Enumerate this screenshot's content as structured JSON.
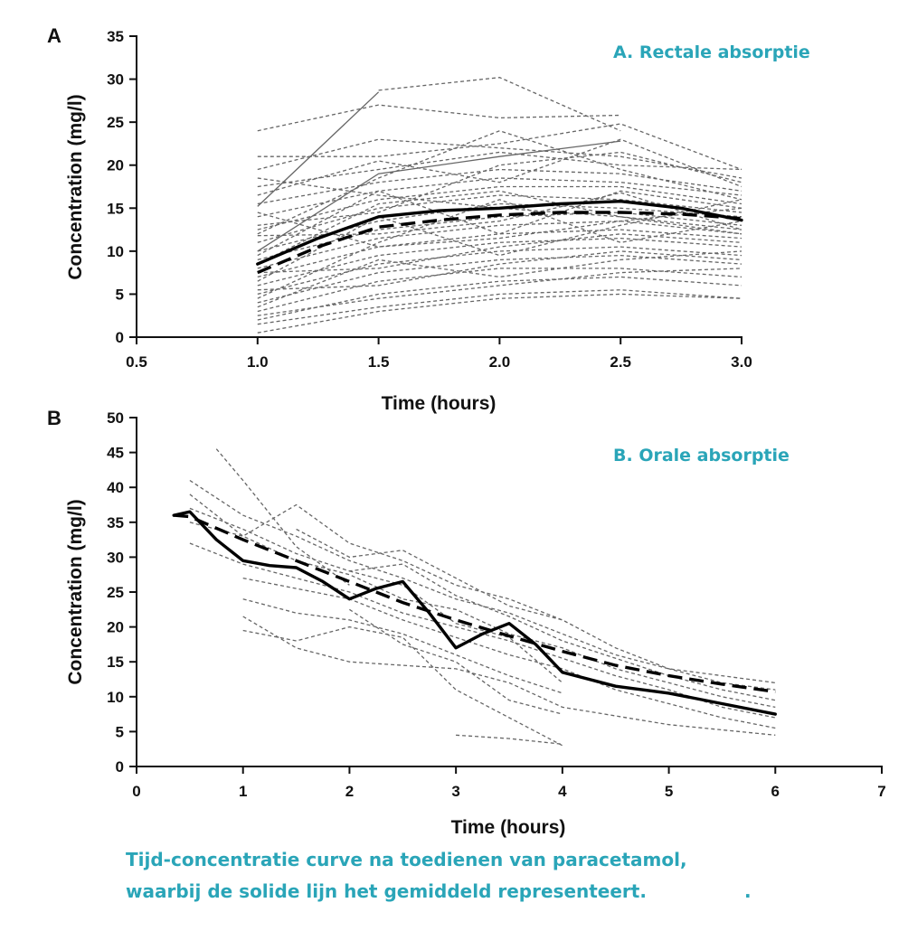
{
  "caption": {
    "line1": "Tijd-concentratie curve na toedienen van paracetamol,",
    "line2": "waarbij de solide lijn het gemiddeld representeert.",
    "trailing_dot": "."
  },
  "colors": {
    "accent": "#2aa5b8",
    "axis": "#111111",
    "individual": "#666666"
  },
  "chart_data": [
    {
      "type": "line",
      "panel_letter": "A",
      "title": "A. Rectale absorptie",
      "xlabel": "Time (hours)",
      "ylabel": "Concentration (mg/l)",
      "xlim": [
        0.5,
        3.0
      ],
      "ylim": [
        0,
        35
      ],
      "xticks": [
        0.5,
        1.0,
        1.5,
        2.0,
        2.5,
        3.0
      ],
      "xtick_labels": [
        "0.5",
        "1.0",
        "1.5",
        "2.0",
        "2.5",
        "3.0"
      ],
      "yticks": [
        0,
        5,
        10,
        15,
        20,
        25,
        30,
        35
      ],
      "ytick_labels": [
        "0",
        "5",
        "10",
        "15",
        "20",
        "25",
        "30",
        "35"
      ],
      "series": [
        {
          "style": "mean-solid",
          "x": [
            1.0,
            1.25,
            1.5,
            1.75,
            2.0,
            2.25,
            2.5,
            2.75,
            3.0
          ],
          "y": [
            8.5,
            11.5,
            14.0,
            14.7,
            15.0,
            15.5,
            15.8,
            15.0,
            13.6
          ]
        },
        {
          "style": "mean-dashed",
          "x": [
            1.0,
            1.25,
            1.5,
            1.75,
            2.0,
            2.25,
            2.5,
            2.75,
            3.0
          ],
          "y": [
            7.5,
            10.5,
            12.8,
            13.6,
            14.2,
            14.5,
            14.5,
            14.3,
            13.8
          ]
        },
        {
          "style": "individual-solid",
          "x": [
            1.0,
            1.5
          ],
          "y": [
            15.2,
            28.5
          ]
        },
        {
          "style": "individual-solid",
          "x": [
            1.0,
            1.5,
            2.0,
            2.5
          ],
          "y": [
            10.0,
            19.0,
            21.0,
            22.8
          ]
        },
        {
          "style": "individual",
          "x": [
            1.5,
            2.0,
            2.5
          ],
          "y": [
            28.7,
            30.2,
            24.0
          ]
        },
        {
          "style": "individual",
          "x": [
            1.0,
            1.5,
            2.0,
            2.5
          ],
          "y": [
            24.0,
            27.0,
            25.5,
            25.8
          ]
        },
        {
          "style": "individual",
          "x": [
            1.0,
            1.5,
            2.0,
            2.5,
            3.0
          ],
          "y": [
            21.0,
            21.0,
            22.5,
            24.8,
            19.5
          ]
        },
        {
          "style": "individual",
          "x": [
            1.0,
            1.5,
            2.0,
            2.5,
            3.0
          ],
          "y": [
            19.5,
            23.0,
            22.0,
            21.0,
            18.5
          ]
        },
        {
          "style": "individual",
          "x": [
            1.0,
            1.5,
            2.0,
            2.5,
            3.0
          ],
          "y": [
            17.5,
            19.5,
            21.5,
            20.0,
            19.5
          ]
        },
        {
          "style": "individual",
          "x": [
            1.0,
            1.5,
            2.0,
            2.5,
            3.0
          ],
          "y": [
            15.5,
            18.0,
            19.5,
            19.0,
            17.0
          ]
        },
        {
          "style": "individual",
          "x": [
            1.0,
            1.5,
            2.0,
            2.5,
            3.0
          ],
          "y": [
            14.0,
            17.0,
            18.5,
            18.0,
            16.5
          ]
        },
        {
          "style": "individual",
          "x": [
            1.0,
            1.5,
            2.0,
            2.5,
            3.0
          ],
          "y": [
            12.5,
            16.0,
            17.5,
            17.5,
            15.5
          ]
        },
        {
          "style": "individual",
          "x": [
            1.0,
            1.5,
            2.0,
            2.5,
            3.0
          ],
          "y": [
            11.0,
            15.0,
            16.5,
            16.0,
            14.5
          ]
        },
        {
          "style": "individual",
          "x": [
            1.0,
            1.5,
            2.0,
            2.5,
            3.0
          ],
          "y": [
            10.0,
            13.5,
            15.5,
            15.0,
            14.0
          ]
        },
        {
          "style": "individual",
          "x": [
            1.0,
            1.5,
            2.0,
            2.5,
            3.0
          ],
          "y": [
            9.0,
            12.5,
            14.0,
            14.5,
            13.0
          ]
        },
        {
          "style": "individual",
          "x": [
            1.0,
            1.5,
            2.0,
            2.5,
            3.0
          ],
          "y": [
            8.0,
            11.5,
            13.0,
            13.5,
            12.0
          ]
        },
        {
          "style": "individual",
          "x": [
            1.0,
            1.5,
            2.0,
            2.5,
            3.0
          ],
          "y": [
            7.0,
            10.5,
            12.0,
            12.5,
            11.5
          ]
        },
        {
          "style": "individual",
          "x": [
            1.0,
            1.5,
            2.0,
            2.5,
            3.0
          ],
          "y": [
            6.0,
            9.5,
            11.0,
            11.5,
            10.5
          ]
        },
        {
          "style": "individual",
          "x": [
            1.0,
            1.5,
            2.0,
            2.5,
            3.0
          ],
          "y": [
            5.0,
            8.5,
            10.0,
            10.5,
            9.5
          ]
        },
        {
          "style": "individual",
          "x": [
            1.0,
            1.5,
            2.0,
            2.5,
            3.0
          ],
          "y": [
            4.0,
            7.5,
            9.0,
            9.5,
            8.5
          ]
        },
        {
          "style": "individual",
          "x": [
            1.0,
            1.5,
            2.0,
            2.5,
            3.0
          ],
          "y": [
            3.0,
            6.5,
            8.0,
            8.0,
            7.0
          ]
        },
        {
          "style": "individual",
          "x": [
            1.0,
            1.5,
            2.0,
            2.5,
            3.0
          ],
          "y": [
            2.0,
            5.0,
            6.5,
            7.0,
            6.0
          ]
        },
        {
          "style": "individual",
          "x": [
            1.0,
            1.5,
            2.0,
            2.5,
            3.0
          ],
          "y": [
            1.5,
            3.5,
            5.0,
            5.5,
            4.5
          ]
        },
        {
          "style": "individual",
          "x": [
            1.0,
            1.5,
            2.0,
            2.5,
            3.0
          ],
          "y": [
            0.5,
            3.0,
            4.5,
            5.0,
            4.5
          ]
        },
        {
          "style": "individual",
          "x": [
            1.0,
            1.5,
            2.0,
            2.5,
            3.0
          ],
          "y": [
            13.0,
            14.5,
            20.0,
            21.5,
            18.0
          ]
        },
        {
          "style": "individual",
          "x": [
            1.0,
            1.5,
            2.0,
            2.5,
            3.0
          ],
          "y": [
            9.5,
            17.0,
            12.0,
            17.0,
            15.0
          ]
        },
        {
          "style": "individual",
          "x": [
            1.0,
            1.5,
            2.0,
            2.5,
            3.0
          ],
          "y": [
            6.5,
            14.0,
            9.5,
            13.0,
            16.0
          ]
        },
        {
          "style": "individual",
          "x": [
            1.0,
            1.5,
            2.0,
            2.5,
            3.0
          ],
          "y": [
            4.5,
            11.0,
            16.0,
            11.0,
            13.5
          ]
        },
        {
          "style": "individual",
          "x": [
            1.0,
            1.5,
            2.0,
            2.5,
            3.0
          ],
          "y": [
            3.5,
            9.0,
            7.0,
            9.0,
            10.0
          ]
        },
        {
          "style": "individual",
          "x": [
            1.0,
            1.5,
            2.0,
            2.5,
            3.0
          ],
          "y": [
            16.5,
            20.5,
            18.0,
            23.0,
            17.5
          ]
        },
        {
          "style": "individual",
          "x": [
            1.0,
            1.5,
            2.0,
            2.5,
            3.0
          ],
          "y": [
            11.8,
            12.0,
            13.5,
            16.8,
            12.5
          ]
        },
        {
          "style": "individual",
          "x": [
            1.0,
            1.5,
            2.0,
            2.5,
            3.0
          ],
          "y": [
            7.5,
            8.0,
            10.5,
            12.0,
            11.0
          ]
        },
        {
          "style": "individual",
          "x": [
            1.0,
            1.5,
            2.0,
            2.5,
            3.0
          ],
          "y": [
            5.5,
            6.0,
            8.5,
            10.0,
            9.0
          ]
        },
        {
          "style": "individual",
          "x": [
            1.0,
            1.5,
            2.0,
            2.5,
            3.0
          ],
          "y": [
            12.0,
            18.5,
            24.0,
            19.5,
            16.0
          ]
        },
        {
          "style": "individual",
          "x": [
            1.0,
            1.5,
            2.0,
            2.5,
            3.0
          ],
          "y": [
            8.5,
            15.5,
            17.0,
            14.0,
            12.5
          ]
        },
        {
          "style": "individual",
          "x": [
            1.0,
            1.5,
            2.0,
            2.5,
            3.0
          ],
          "y": [
            14.5,
            10.5,
            11.5,
            13.5,
            15.0
          ]
        },
        {
          "style": "individual",
          "x": [
            1.0,
            1.5,
            2.0,
            2.5,
            3.0
          ],
          "y": [
            2.5,
            4.5,
            6.0,
            7.5,
            8.0
          ]
        },
        {
          "style": "individual",
          "x": [
            1.0,
            1.5,
            2.0,
            2.5,
            3.0
          ],
          "y": [
            18.5,
            16.5,
            15.0,
            14.0,
            12.0
          ]
        }
      ]
    },
    {
      "type": "line",
      "panel_letter": "B",
      "title": "B. Orale absorptie",
      "xlabel": "Time (hours)",
      "ylabel": "Concentration (mg/l)",
      "xlim": [
        0,
        7
      ],
      "ylim": [
        0,
        50
      ],
      "xticks": [
        0,
        1,
        2,
        3,
        4,
        5,
        6,
        7
      ],
      "xtick_labels": [
        "0",
        "1",
        "2",
        "3",
        "4",
        "5",
        "6",
        "7"
      ],
      "yticks": [
        0,
        5,
        10,
        15,
        20,
        25,
        30,
        35,
        40,
        45,
        50
      ],
      "ytick_labels": [
        "0",
        "5",
        "10",
        "15",
        "20",
        "25",
        "30",
        "35",
        "40",
        "45",
        "50"
      ],
      "series": [
        {
          "style": "mean-solid",
          "x": [
            0.35,
            0.5,
            0.75,
            1.0,
            1.25,
            1.5,
            1.75,
            2.0,
            2.25,
            2.5,
            2.75,
            3.0,
            3.25,
            3.5,
            3.75,
            4.0,
            4.5,
            5.0,
            5.5,
            6.0
          ],
          "y": [
            36.0,
            36.5,
            32.5,
            29.5,
            28.8,
            28.5,
            26.5,
            24.0,
            25.5,
            26.5,
            22.0,
            17.0,
            19.0,
            20.5,
            17.5,
            13.5,
            11.5,
            10.5,
            9.0,
            7.5
          ]
        },
        {
          "style": "mean-dashed",
          "x": [
            0.35,
            0.5,
            1.0,
            1.5,
            2.0,
            2.5,
            3.0,
            3.5,
            4.0,
            4.5,
            5.0,
            5.5,
            6.0
          ],
          "y": [
            36.0,
            35.8,
            32.5,
            29.5,
            26.5,
            23.5,
            21.0,
            18.7,
            16.5,
            14.5,
            13.0,
            11.8,
            10.7
          ]
        },
        {
          "style": "individual",
          "x": [
            0.75,
            1.0,
            1.5,
            2.0
          ],
          "y": [
            45.5,
            41.0,
            31.5,
            26.0
          ]
        },
        {
          "style": "individual",
          "x": [
            0.5,
            1.0,
            1.5,
            2.0,
            2.5,
            3.0,
            3.5,
            4.0,
            4.5,
            5.0,
            5.5,
            6.0
          ],
          "y": [
            41.0,
            36.0,
            33.0,
            29.5,
            27.0,
            24.0,
            22.0,
            19.0,
            16.0,
            14.0,
            13.0,
            12.0
          ]
        },
        {
          "style": "individual",
          "x": [
            0.5,
            1.0,
            1.5,
            2.0,
            2.5,
            3.0,
            3.5,
            4.0,
            4.5,
            5.0,
            5.5,
            6.0
          ],
          "y": [
            39.0,
            33.0,
            37.5,
            32.0,
            29.5,
            26.0,
            24.0,
            21.0,
            17.0,
            14.0,
            12.0,
            11.0
          ]
        },
        {
          "style": "individual",
          "x": [
            0.5,
            1.0,
            1.5,
            2.0,
            2.5,
            3.0,
            3.5,
            4.0,
            4.5,
            5.0,
            5.5,
            6.0
          ],
          "y": [
            37.0,
            34.0,
            30.5,
            28.0,
            29.0,
            24.5,
            21.5,
            18.0,
            15.5,
            13.0,
            11.0,
            9.5
          ]
        },
        {
          "style": "individual",
          "x": [
            0.5,
            1.0,
            1.5,
            2.0,
            2.5,
            3.0,
            3.5,
            4.0,
            4.5,
            5.0,
            5.5,
            6.0
          ],
          "y": [
            35.0,
            33.0,
            29.5,
            27.5,
            24.0,
            22.5,
            19.0,
            17.0,
            14.0,
            12.0,
            10.0,
            8.5
          ]
        },
        {
          "style": "individual",
          "x": [
            0.5,
            1.0,
            1.5,
            2.0,
            2.5,
            3.0,
            3.5,
            4.0,
            4.5,
            5.0,
            5.5,
            6.0
          ],
          "y": [
            32.0,
            29.0,
            27.0,
            25.0,
            22.0,
            20.0,
            18.0,
            15.5,
            13.0,
            11.0,
            8.5,
            7.0
          ]
        },
        {
          "style": "individual",
          "x": [
            1.0,
            1.5,
            2.0,
            2.5,
            3.0,
            3.5,
            4.0,
            4.5,
            5.0,
            5.5,
            6.0
          ],
          "y": [
            27.0,
            25.5,
            24.0,
            21.0,
            18.5,
            16.0,
            14.0,
            11.0,
            9.0,
            7.0,
            5.5
          ]
        },
        {
          "style": "individual",
          "x": [
            1.0,
            1.5,
            2.0,
            2.5,
            3.0,
            3.5,
            4.0
          ],
          "y": [
            24.0,
            22.0,
            21.0,
            19.0,
            16.0,
            13.0,
            10.5
          ]
        },
        {
          "style": "individual",
          "x": [
            1.0,
            1.5,
            2.0,
            2.5,
            3.0,
            3.5,
            4.0,
            5.0,
            6.0
          ],
          "y": [
            21.5,
            17.0,
            15.0,
            14.5,
            14.0,
            12.0,
            8.5,
            6.0,
            4.5
          ]
        },
        {
          "style": "individual",
          "x": [
            1.0,
            1.5,
            2.0,
            2.5,
            3.0,
            3.5,
            4.0
          ],
          "y": [
            19.5,
            18.0,
            20.0,
            18.5,
            11.0,
            7.0,
            3.0
          ]
        },
        {
          "style": "individual",
          "x": [
            1.5,
            2.0,
            2.5,
            3.0,
            3.5,
            4.0
          ],
          "y": [
            34.0,
            30.0,
            31.0,
            27.0,
            23.0,
            21.0
          ]
        },
        {
          "style": "individual",
          "x": [
            2.0,
            2.5,
            3.0,
            3.5,
            4.0
          ],
          "y": [
            28.0,
            26.0,
            20.5,
            18.5,
            12.0
          ]
        },
        {
          "style": "individual",
          "x": [
            2.0,
            2.5,
            3.0,
            3.5,
            4.0
          ],
          "y": [
            22.5,
            17.5,
            15.0,
            9.5,
            7.5
          ]
        },
        {
          "style": "individual",
          "x": [
            3.0,
            3.5,
            4.0
          ],
          "y": [
            4.5,
            4.0,
            3.2
          ]
        }
      ]
    }
  ]
}
